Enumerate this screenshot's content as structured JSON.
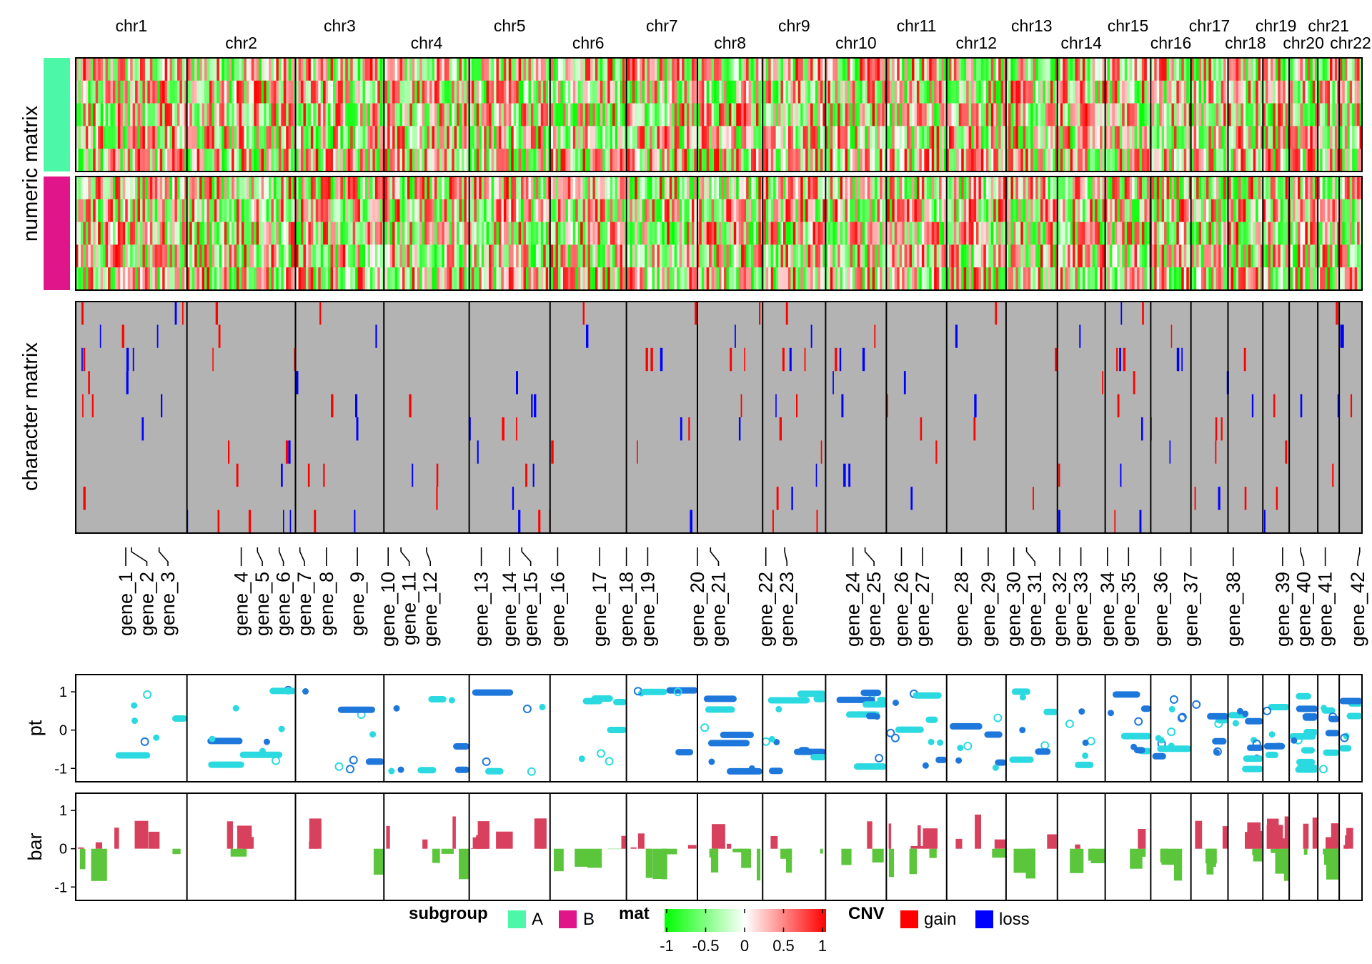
{
  "chart_data": {
    "type": "heatmap",
    "chromosomes": [
      {
        "name": "chr1",
        "len": 249
      },
      {
        "name": "chr2",
        "len": 243
      },
      {
        "name": "chr3",
        "len": 198
      },
      {
        "name": "chr4",
        "len": 191
      },
      {
        "name": "chr5",
        "len": 181
      },
      {
        "name": "chr6",
        "len": 171
      },
      {
        "name": "chr7",
        "len": 159
      },
      {
        "name": "chr8",
        "len": 146
      },
      {
        "name": "chr9",
        "len": 141
      },
      {
        "name": "chr10",
        "len": 136
      },
      {
        "name": "chr11",
        "len": 135
      },
      {
        "name": "chr12",
        "len": 133
      },
      {
        "name": "chr13",
        "len": 115
      },
      {
        "name": "chr14",
        "len": 107
      },
      {
        "name": "chr15",
        "len": 102
      },
      {
        "name": "chr16",
        "len": 90
      },
      {
        "name": "chr17",
        "len": 83
      },
      {
        "name": "chr18",
        "len": 78
      },
      {
        "name": "chr19",
        "len": 59
      },
      {
        "name": "chr20",
        "len": 64
      },
      {
        "name": "chr21",
        "len": 48
      },
      {
        "name": "chr22",
        "len": 51
      }
    ],
    "row_titles": [
      "numeric matrix",
      "character matrix"
    ],
    "subgroups": [
      {
        "name": "A",
        "color": "#4CF7A7",
        "rows": 5
      },
      {
        "name": "B",
        "color": "#E0158A",
        "rows": 5
      }
    ],
    "character_matrix_rows": 10,
    "genes": [
      {
        "label": "gene_1",
        "pos": 0.45,
        "connector": "tilde"
      },
      {
        "label": "gene_2",
        "pos": 0.5,
        "connector": "tilde"
      },
      {
        "label": "gene_3",
        "pos": 0.75,
        "connector": "dash"
      },
      {
        "label": "gene_4",
        "pos": 0.5,
        "connector": "tilde"
      },
      {
        "label": "gene_5",
        "pos": 0.65,
        "connector": "tilde"
      },
      {
        "label": "gene_6",
        "pos": 0.85,
        "connector": "tilde"
      },
      {
        "label": "gene_7",
        "pos": 0.05,
        "connector": "tilde"
      },
      {
        "label": "gene_8",
        "pos": 0.35,
        "connector": "dash"
      },
      {
        "label": "gene_9",
        "pos": 0.7,
        "connector": "dash"
      },
      {
        "label": "gene_10",
        "pos": 0.05,
        "connector": "tilde"
      },
      {
        "label": "gene_11",
        "pos": 0.2,
        "connector": "tilde"
      },
      {
        "label": "gene_12",
        "pos": 0.5,
        "connector": "tilde"
      },
      {
        "label": "gene_13",
        "pos": 0.15,
        "connector": "dash"
      },
      {
        "label": "gene_14",
        "pos": 0.5,
        "connector": "tilde"
      },
      {
        "label": "gene_15",
        "pos": 0.65,
        "connector": "tilde"
      },
      {
        "label": "gene_16",
        "pos": 0.1,
        "connector": "dash"
      },
      {
        "label": "gene_17",
        "pos": 0.65,
        "connector": "dash"
      },
      {
        "label": "gene_18",
        "pos": 0.0,
        "connector": "dash"
      },
      {
        "label": "gene_19",
        "pos": 0.3,
        "connector": "dash"
      },
      {
        "label": "gene_20",
        "pos": 0.0,
        "connector": "tilde"
      },
      {
        "label": "gene_21",
        "pos": 0.2,
        "connector": "tilde"
      },
      {
        "label": "gene_22",
        "pos": 0.05,
        "connector": "tilde"
      },
      {
        "label": "gene_23",
        "pos": 0.35,
        "connector": "tilde"
      },
      {
        "label": "gene_24",
        "pos": 0.45,
        "connector": "tilde"
      },
      {
        "label": "gene_25",
        "pos": 0.65,
        "connector": "tilde"
      },
      {
        "label": "gene_26",
        "pos": 0.25,
        "connector": "dash"
      },
      {
        "label": "gene_27",
        "pos": 0.6,
        "connector": "dash"
      },
      {
        "label": "gene_28",
        "pos": 0.25,
        "connector": "dash"
      },
      {
        "label": "gene_29",
        "pos": 0.7,
        "connector": "tilde"
      },
      {
        "label": "gene_30",
        "pos": 0.15,
        "connector": "tilde"
      },
      {
        "label": "gene_31",
        "pos": 0.4,
        "connector": "tilde"
      },
      {
        "label": "gene_32",
        "pos": 0.05,
        "connector": "dash"
      },
      {
        "label": "gene_33",
        "pos": 0.45,
        "connector": "dash"
      },
      {
        "label": "gene_34",
        "pos": 0.05,
        "connector": "dash"
      },
      {
        "label": "gene_35",
        "pos": 0.5,
        "connector": "dash"
      },
      {
        "label": "gene_36",
        "pos": 0.25,
        "connector": "dash"
      },
      {
        "label": "gene_37",
        "pos": 0.0,
        "connector": "dash"
      },
      {
        "label": "gene_38",
        "pos": 0.15,
        "connector": "dash"
      },
      {
        "label": "gene_39",
        "pos": 0.75,
        "connector": "tilde"
      },
      {
        "label": "gene_40",
        "pos": 0.4,
        "connector": "tilde"
      },
      {
        "label": "gene_41",
        "pos": 0.35,
        "connector": "tilde"
      },
      {
        "label": "gene_42",
        "pos": 0.9,
        "connector": "tilde"
      }
    ],
    "gene_chromosome_index": [
      0,
      0,
      0,
      1,
      1,
      1,
      2,
      2,
      2,
      3,
      3,
      3,
      4,
      4,
      4,
      5,
      5,
      6,
      6,
      7,
      7,
      8,
      8,
      9,
      9,
      10,
      10,
      11,
      11,
      12,
      12,
      13,
      13,
      14,
      14,
      15,
      16,
      17,
      18,
      19,
      20,
      21
    ],
    "pt_track": {
      "ylabel": "pt",
      "ylim": [
        -1.35,
        1.45
      ],
      "yticks": [
        1,
        0,
        -1
      ],
      "colors": [
        "#2BD9E0",
        "#1E78DC"
      ]
    },
    "bar_track": {
      "ylabel": "bar",
      "ylim": [
        -1.35,
        1.45
      ],
      "yticks": [
        1,
        0,
        -1
      ],
      "pos_color": "#D7415E",
      "neg_color": "#5BC53B"
    },
    "legend": {
      "subgroup": {
        "title": "subgroup",
        "items": [
          {
            "label": "A",
            "color": "#4CF7A7"
          },
          {
            "label": "B",
            "color": "#E0158A"
          }
        ]
      },
      "mat": {
        "title": "mat",
        "ticks": [
          "-1",
          "-0.5",
          "0",
          "0.5",
          "1"
        ],
        "colors": [
          "#00FF00",
          "#FFFFFF",
          "#FF0000"
        ]
      },
      "cnv": {
        "title": "CNV",
        "items": [
          {
            "label": "gain",
            "color": "#FF0000"
          },
          {
            "label": "loss",
            "color": "#0000FF"
          }
        ]
      }
    },
    "background_color": "#B3B3B3"
  }
}
